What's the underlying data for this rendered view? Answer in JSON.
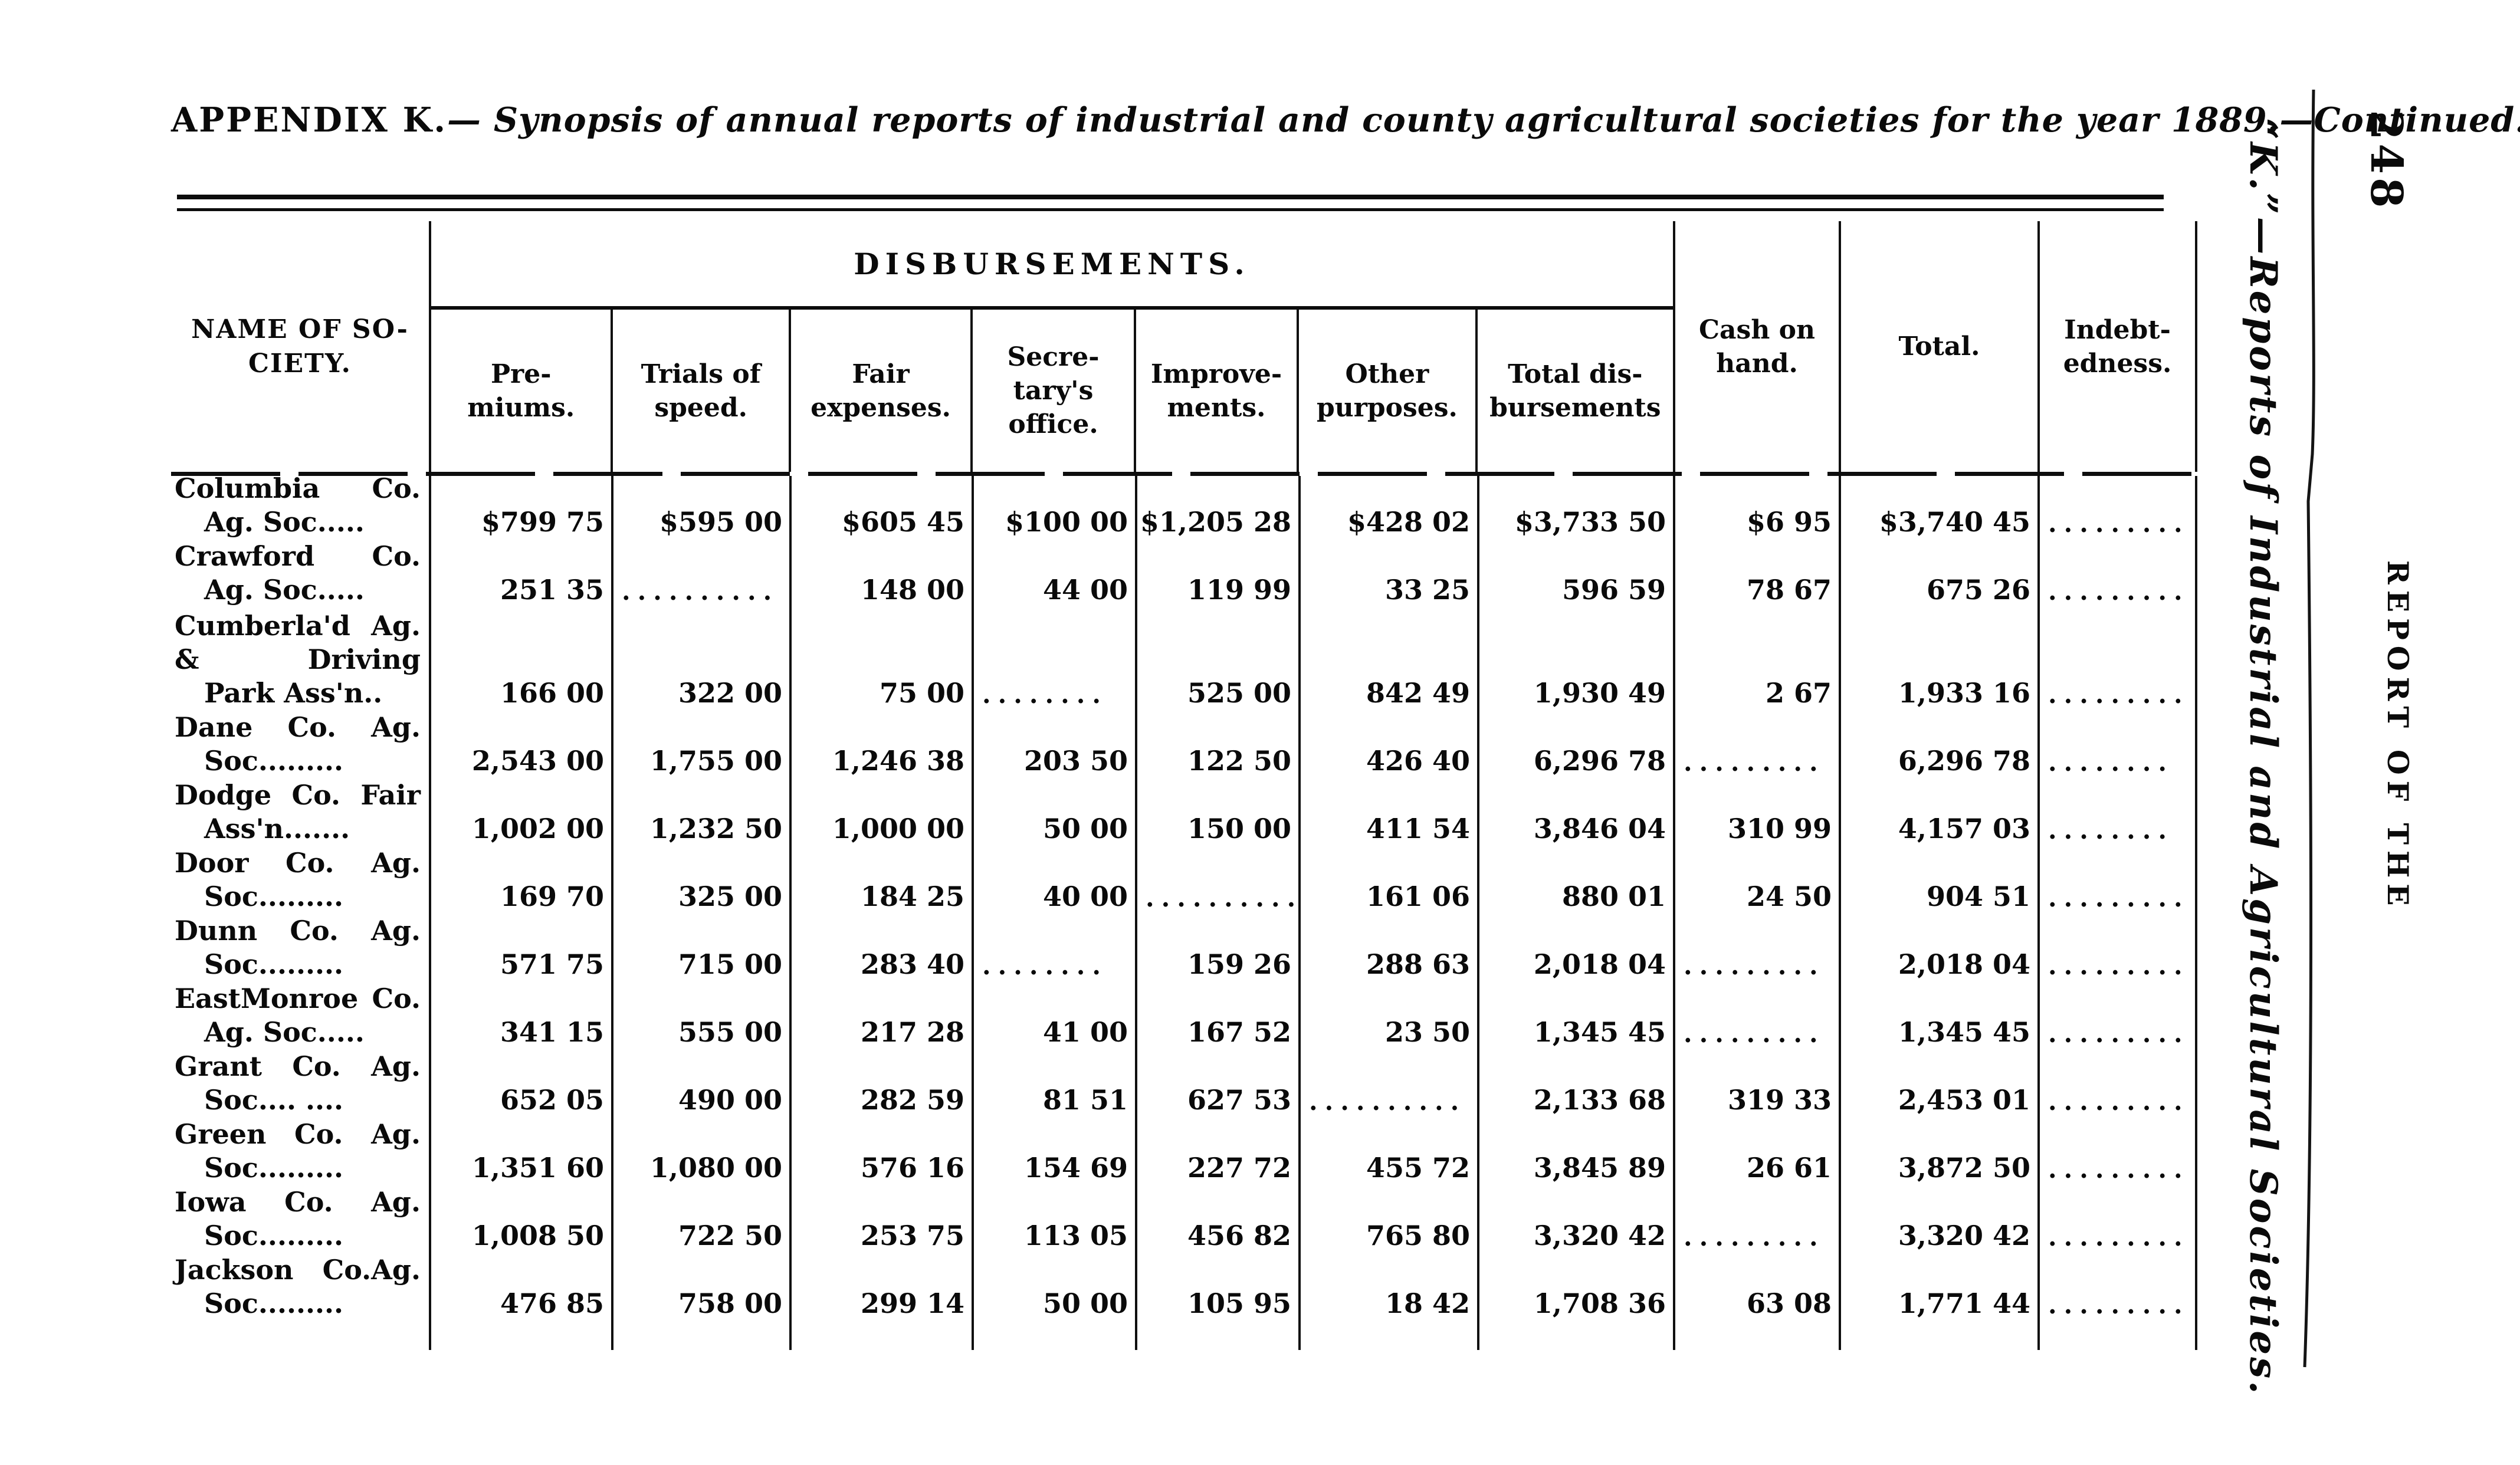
{
  "title": {
    "prefix": "APPENDIX K.",
    "body": "— Synopsis of annual reports of industrial and county agricultural societies for the year 1889.—Continued."
  },
  "margin": {
    "page_number": "248",
    "report_header": "REPORT OF THE",
    "running_title": "“K.”—Reports of Industrial and Agricultural Societies."
  },
  "table": {
    "name_header_lines": [
      "NAME OF SO-",
      "CIETY."
    ],
    "group_header": "DISBURSEMENTS.",
    "disbursement_columns": [
      {
        "key": "premiums",
        "lines": [
          "Pre-",
          "miums."
        ]
      },
      {
        "key": "trials-of-speed",
        "lines": [
          "Trials of",
          "speed."
        ]
      },
      {
        "key": "fair-expenses",
        "lines": [
          "Fair",
          "expenses."
        ]
      },
      {
        "key": "secretarys-office",
        "lines": [
          "Secre-",
          "tary's",
          "office."
        ]
      },
      {
        "key": "improvements",
        "lines": [
          "Improve-",
          "ments."
        ]
      },
      {
        "key": "other-purposes",
        "lines": [
          "Other",
          "purposes."
        ]
      },
      {
        "key": "total-disbursements",
        "lines": [
          "Total dis-",
          "bursements"
        ]
      }
    ],
    "right_columns": [
      {
        "key": "cash-on-hand",
        "lines": [
          "Cash on",
          "hand."
        ]
      },
      {
        "key": "total",
        "lines": [
          "Total."
        ]
      },
      {
        "key": "indebtedness",
        "lines": [
          "Indebt-",
          "edness."
        ]
      }
    ],
    "rows": [
      {
        "name_lines": [
          "Columbia Co.",
          "Ag. Soc....."
        ],
        "values": [
          "$799 75",
          "$595 00",
          "$605 45",
          "$100 00",
          "$1,205 28",
          "$428 02",
          "$3,733 50",
          "$6 95",
          "$3,740 45",
          "........."
        ]
      },
      {
        "name_lines": [
          "Crawford Co.",
          "Ag. Soc....."
        ],
        "values": [
          "251 35",
          "..........",
          "148 00",
          "44 00",
          "119 99",
          "33 25",
          "596 59",
          "78 67",
          "675 26",
          "........."
        ]
      },
      {
        "name_lines": [
          "Cumberla'd Ag.",
          "& Driving",
          "Park Ass'n.."
        ],
        "values": [
          "166 00",
          "322 00",
          "75 00",
          "........",
          "525 00",
          "842 49",
          "1,930 49",
          "2 67",
          "1,933 16",
          "........."
        ]
      },
      {
        "name_lines": [
          "Dane Co. Ag.",
          "Soc........."
        ],
        "values": [
          "2,543 00",
          "1,755 00",
          "1,246 38",
          "203 50",
          "122 50",
          "426 40",
          "6,296 78",
          ".........",
          "6,296 78",
          "........"
        ]
      },
      {
        "name_lines": [
          "Dodge Co. Fair",
          "Ass'n......."
        ],
        "values": [
          "1,002 00",
          "1,232 50",
          "1,000 00",
          "50 00",
          "150 00",
          "411 54",
          "3,846 04",
          "310 99",
          "4,157 03",
          "........"
        ]
      },
      {
        "name_lines": [
          "Door Co. Ag.",
          "Soc........."
        ],
        "values": [
          "169 70",
          "325 00",
          "184 25",
          "40 00",
          "..........",
          "161 06",
          "880 01",
          "24 50",
          "904 51",
          "........."
        ]
      },
      {
        "name_lines": [
          "Dunn Co. Ag.",
          "Soc........."
        ],
        "values": [
          "571 75",
          "715 00",
          "283 40",
          "........",
          "159 26",
          "288 63",
          "2,018 04",
          ".........",
          "2,018 04",
          "........."
        ]
      },
      {
        "name_lines": [
          "EastMonroe Co.",
          "Ag. Soc....."
        ],
        "values": [
          "341 15",
          "555 00",
          "217 28",
          "41 00",
          "167 52",
          "23 50",
          "1,345 45",
          ".........",
          "1,345 45",
          "........."
        ]
      },
      {
        "name_lines": [
          "Grant Co. Ag.",
          "Soc.... ...."
        ],
        "values": [
          "652 05",
          "490 00",
          "282 59",
          "81 51",
          "627 53",
          "..........",
          "2,133 68",
          "319 33",
          "2,453 01",
          "........."
        ]
      },
      {
        "name_lines": [
          "Green Co. Ag.",
          "Soc........."
        ],
        "values": [
          "1,351 60",
          "1,080 00",
          "576 16",
          "154 69",
          "227 72",
          "455 72",
          "3,845 89",
          "26 61",
          "3,872 50",
          "........."
        ]
      },
      {
        "name_lines": [
          "Iowa Co. Ag.",
          "Soc........."
        ],
        "values": [
          "1,008 50",
          "722 50",
          "253 75",
          "113 05",
          "456 82",
          "765 80",
          "3,320 42",
          ".........",
          "3,320 42",
          "........."
        ]
      },
      {
        "name_lines": [
          "Jackson Co.Ag.",
          "Soc........."
        ],
        "values": [
          "476 85",
          "758 00",
          "299 14",
          "50 00",
          "105 95",
          "18 42",
          "1,708 36",
          "63 08",
          "1,771 44",
          "........."
        ]
      }
    ]
  }
}
